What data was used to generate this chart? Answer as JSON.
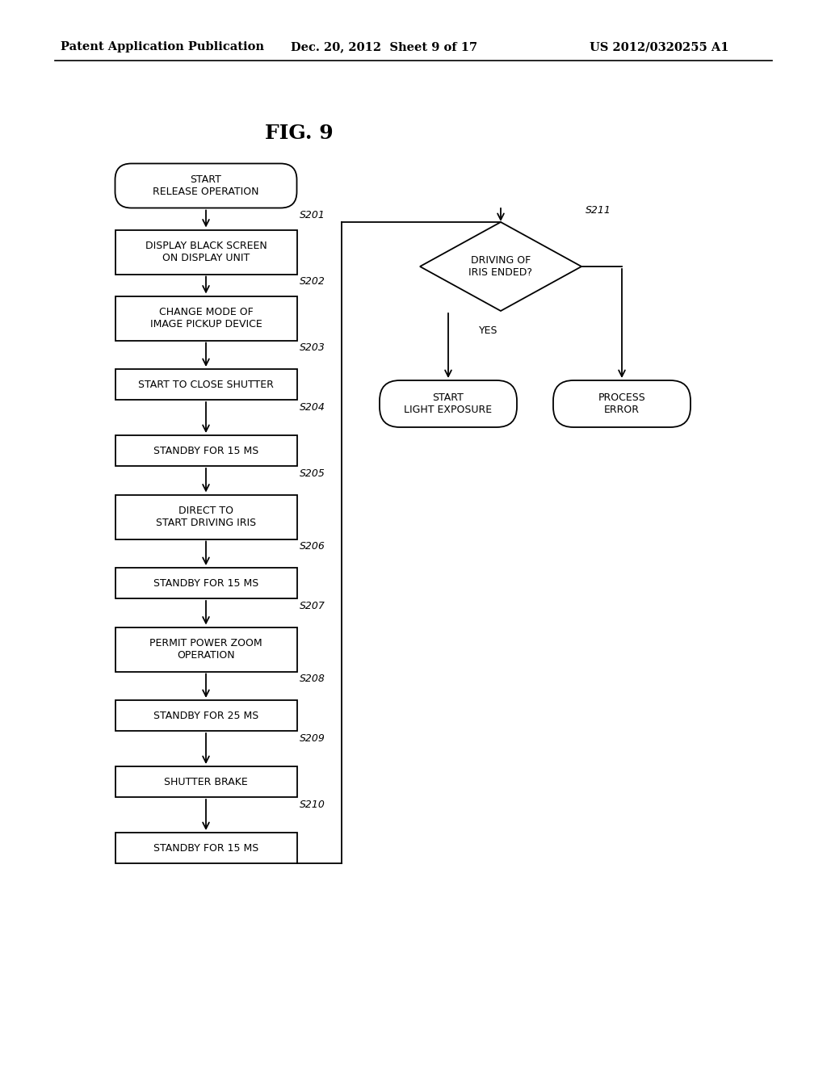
{
  "title": "FIG. 9",
  "header_left": "Patent Application Publication",
  "header_mid": "Dec. 20, 2012  Sheet 9 of 17",
  "header_right": "US 2012/0320255 A1",
  "background": "#ffffff",
  "left_boxes": [
    {
      "label": "START\nRELEASE OPERATION",
      "type": "rounded",
      "step": "S201"
    },
    {
      "label": "DISPLAY BLACK SCREEN\nON DISPLAY UNIT",
      "type": "rect",
      "step": "S202"
    },
    {
      "label": "CHANGE MODE OF\nIMAGE PICKUP DEVICE",
      "type": "rect",
      "step": "S203"
    },
    {
      "label": "START TO CLOSE SHUTTER",
      "type": "rect",
      "step": "S204"
    },
    {
      "label": "STANDBY FOR 15 MS",
      "type": "rect",
      "step": "S205"
    },
    {
      "label": "DIRECT TO\nSTART DRIVING IRIS",
      "type": "rect",
      "step": "S206"
    },
    {
      "label": "STANDBY FOR 15 MS",
      "type": "rect",
      "step": "S207"
    },
    {
      "label": "PERMIT POWER ZOOM\nOPERATION",
      "type": "rect",
      "step": "S208"
    },
    {
      "label": "STANDBY FOR 25 MS",
      "type": "rect",
      "step": "S209"
    },
    {
      "label": "SHUTTER BRAKE",
      "type": "rect",
      "step": "S210"
    },
    {
      "label": "STANDBY FOR 15 MS",
      "type": "rect",
      "step": null
    }
  ],
  "right_diamond": {
    "label": "DRIVING OF\nIRIS ENDED?",
    "step": "S211"
  },
  "right_bottom_left": {
    "label": "START\nLIGHT EXPOSURE",
    "type": "rounded"
  },
  "right_bottom_right": {
    "label": "PROCESS\nERROR",
    "type": "rounded"
  },
  "yes_label": "YES"
}
